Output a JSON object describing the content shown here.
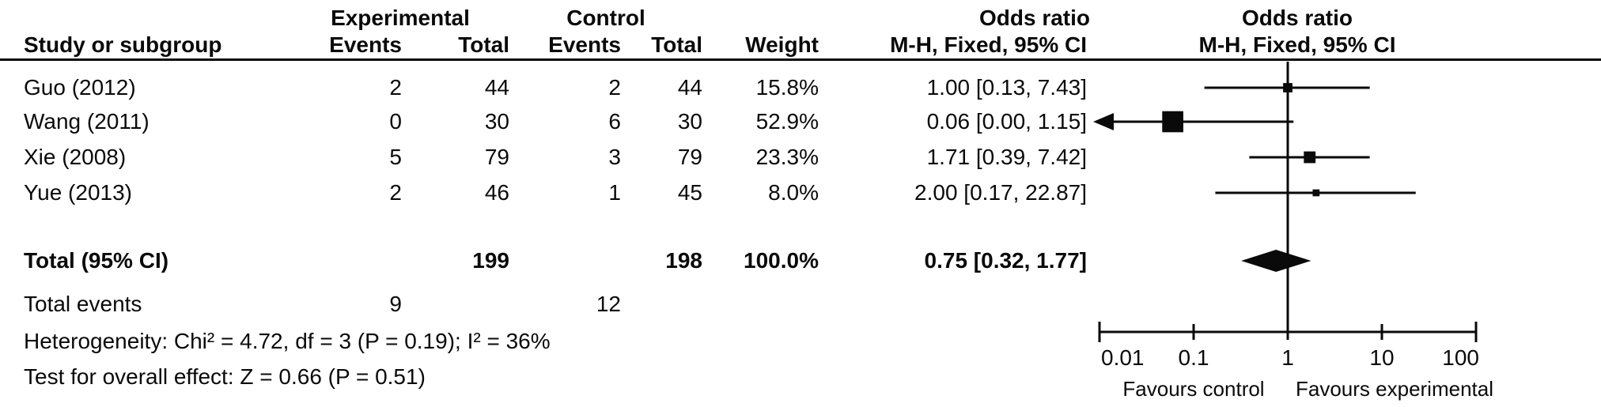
{
  "table": {
    "headers": {
      "group_experimental": "Experimental",
      "group_control": "Control",
      "or_col_line1": "Odds ratio",
      "or_col_line2": "M-H, Fixed, 95% CI",
      "plot_col_line1": "Odds ratio",
      "plot_col_line2": "M-H, Fixed, 95% CI",
      "study": "Study or subgroup",
      "events": "Events",
      "total": "Total",
      "weight": "Weight"
    },
    "studies": [
      {
        "name": "Guo (2012)",
        "exp_events": "2",
        "exp_total": "44",
        "ctrl_events": "2",
        "ctrl_total": "44",
        "weight": "15.8%",
        "or_ci": "1.00 [0.13, 7.43]"
      },
      {
        "name": "Wang (2011)",
        "exp_events": "0",
        "exp_total": "30",
        "ctrl_events": "6",
        "ctrl_total": "30",
        "weight": "52.9%",
        "or_ci": "0.06 [0.00, 1.15]"
      },
      {
        "name": "Xie (2008)",
        "exp_events": "5",
        "exp_total": "79",
        "ctrl_events": "3",
        "ctrl_total": "79",
        "weight": "23.3%",
        "or_ci": "1.71 [0.39, 7.42]"
      },
      {
        "name": "Yue (2013)",
        "exp_events": "2",
        "exp_total": "46",
        "ctrl_events": "1",
        "ctrl_total": "45",
        "weight": "8.0%",
        "or_ci": "2.00 [0.17, 22.87]"
      }
    ],
    "total_row": {
      "label": "Total (95% CI)",
      "exp_total": "199",
      "ctrl_total": "198",
      "weight": "100.0%",
      "or_ci": "0.75 [0.32, 1.77]"
    },
    "total_events_row": {
      "label": "Total events",
      "exp_events": "9",
      "ctrl_events": "12"
    },
    "heterogeneity_line": "Heterogeneity: Chi² = 4.72, df = 3 (P = 0.19); I² = 36%",
    "overall_effect_line": "Test for overall effect: Z = 0.66 (P = 0.51)"
  },
  "chart_data": {
    "type": "forest",
    "effect_measure": "Odds ratio",
    "method": "M-H, Fixed, 95% CI",
    "x_scale": "log10",
    "x_ticks": [
      0.01,
      0.1,
      1,
      10,
      100
    ],
    "xlim": [
      0.01,
      100
    ],
    "no_effect_value": 1,
    "studies": [
      {
        "name": "Guo (2012)",
        "exp_events": 2,
        "exp_total": 44,
        "ctrl_events": 2,
        "ctrl_total": 44,
        "weight_pct": 15.8,
        "or": 1.0,
        "ci_low": 0.13,
        "ci_high": 7.43,
        "ci_low_offscale": false
      },
      {
        "name": "Wang (2011)",
        "exp_events": 0,
        "exp_total": 30,
        "ctrl_events": 6,
        "ctrl_total": 30,
        "weight_pct": 52.9,
        "or": 0.06,
        "ci_low": 0.0,
        "ci_high": 1.15,
        "ci_low_offscale": true
      },
      {
        "name": "Xie (2008)",
        "exp_events": 5,
        "exp_total": 79,
        "ctrl_events": 3,
        "ctrl_total": 79,
        "weight_pct": 23.3,
        "or": 1.71,
        "ci_low": 0.39,
        "ci_high": 7.42,
        "ci_low_offscale": false
      },
      {
        "name": "Yue (2013)",
        "exp_events": 2,
        "exp_total": 46,
        "ctrl_events": 1,
        "ctrl_total": 45,
        "weight_pct": 8.0,
        "or": 2.0,
        "ci_low": 0.17,
        "ci_high": 22.87,
        "ci_low_offscale": false
      }
    ],
    "total": {
      "exp_total": 199,
      "ctrl_total": 198,
      "exp_events": 9,
      "ctrl_events": 12,
      "weight_pct": 100.0,
      "or": 0.75,
      "ci_low": 0.32,
      "ci_high": 1.77
    },
    "heterogeneity": {
      "chi2": 4.72,
      "df": 3,
      "p": 0.19,
      "i2_pct": 36
    },
    "overall_effect": {
      "z": 0.66,
      "p": 0.51
    },
    "tick_labels": [
      "0.01",
      "0.1",
      "1",
      "10",
      "100"
    ],
    "xlabel_left": "Favours control",
    "xlabel_right": "Favours experimental"
  }
}
